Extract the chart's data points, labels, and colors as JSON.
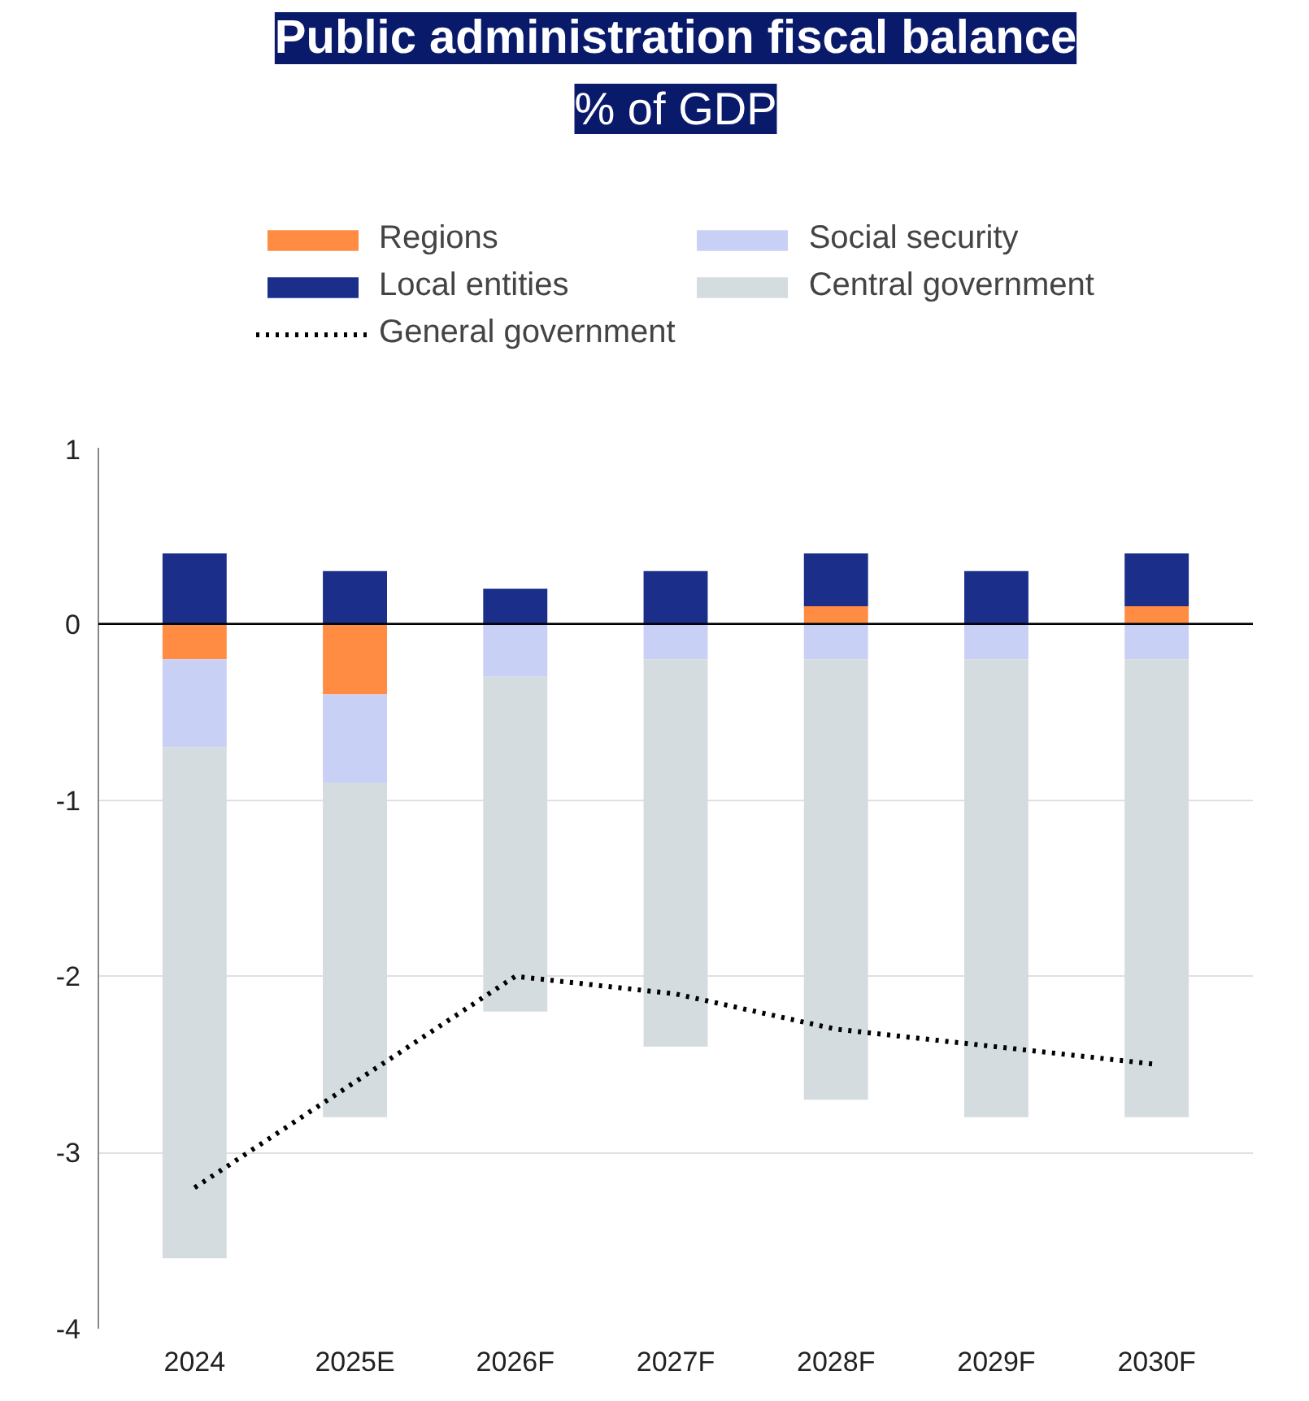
{
  "chart_data": {
    "type": "bar",
    "title": "Public administration fiscal balance",
    "subtitle": "% of GDP",
    "categories": [
      "2024",
      "2025E",
      "2026F",
      "2027F",
      "2028F",
      "2029F",
      "2030F"
    ],
    "stacked": true,
    "series": [
      {
        "name": "Regions",
        "color": "#ff8c42",
        "values": [
          -0.2,
          -0.4,
          0,
          0,
          0.1,
          0,
          0.1
        ]
      },
      {
        "name": "Local entities",
        "color": "#1a2e8a",
        "values": [
          0.4,
          0.3,
          0.2,
          0.3,
          0.3,
          0.3,
          0.3
        ]
      },
      {
        "name": "Social security",
        "color": "#c9d0f5",
        "values": [
          -0.5,
          -0.5,
          -0.3,
          -0.2,
          -0.2,
          -0.2,
          -0.2
        ]
      },
      {
        "name": "Central government",
        "color": "#d5dcdf",
        "values": [
          -2.9,
          -1.9,
          -1.9,
          -2.2,
          -2.5,
          -2.6,
          -2.6
        ]
      },
      {
        "name": "General government",
        "type": "line",
        "color": "#000000",
        "line_style": "dotted",
        "values": [
          -3.2,
          -2.6,
          -2.0,
          -2.1,
          -2.3,
          -2.4,
          -2.5
        ]
      }
    ],
    "ylim": [
      -4,
      1
    ],
    "yticks": [
      -4,
      -3,
      -2,
      -1,
      0,
      1
    ],
    "grid": "y",
    "legend": "top",
    "ref_lines": [
      {
        "axis": "y",
        "value": 0,
        "color": "#000000"
      }
    ]
  }
}
